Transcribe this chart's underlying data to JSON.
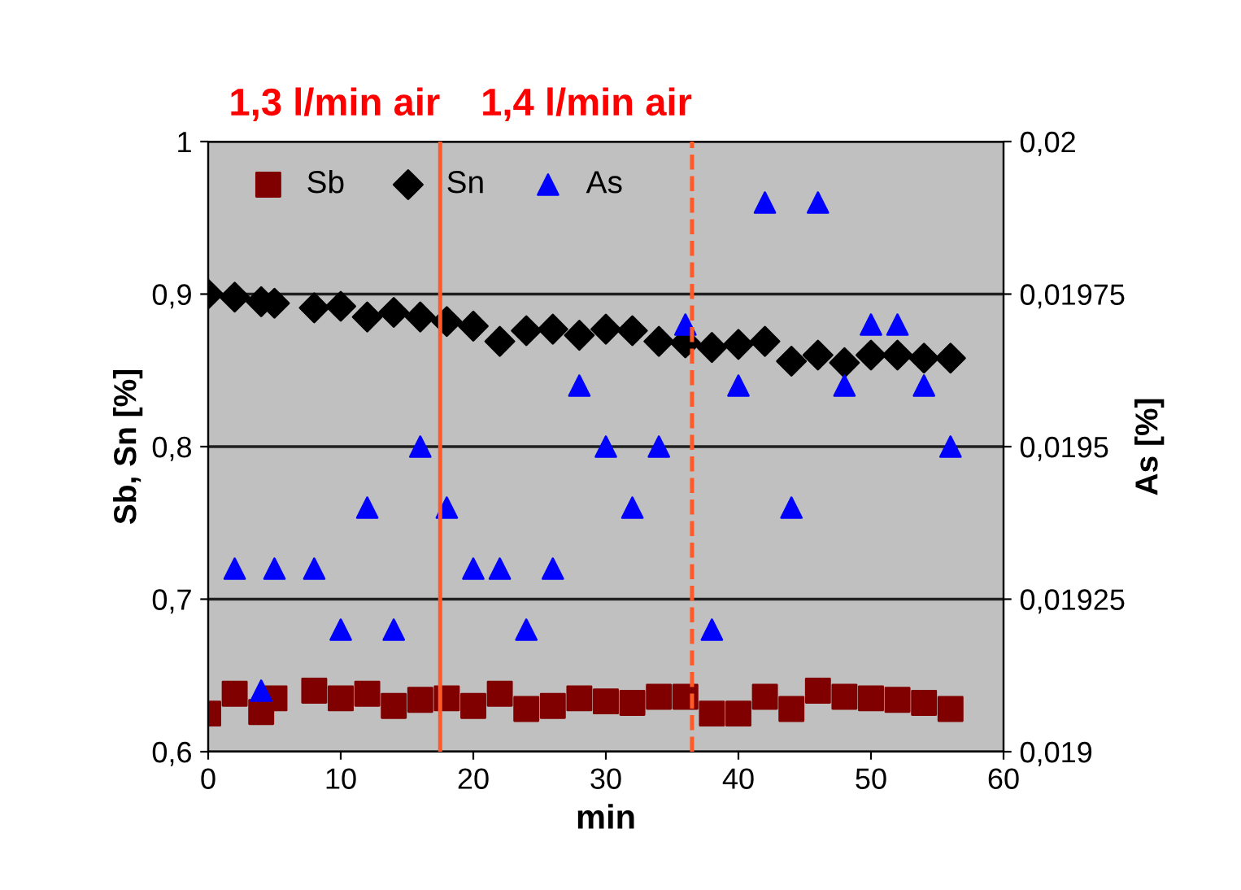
{
  "chart_data": {
    "type": "scatter",
    "xlabel": "min",
    "ylabel": "Sb, Sn [%]",
    "y2label": "As [%]",
    "xlim": [
      0,
      60
    ],
    "xticks": [
      0,
      10,
      20,
      30,
      40,
      50,
      60
    ],
    "ylim": [
      0.6,
      1.0
    ],
    "yticks": [
      {
        "value": 0.6,
        "label": "0,6"
      },
      {
        "value": 0.7,
        "label": "0,7"
      },
      {
        "value": 0.8,
        "label": "0,8"
      },
      {
        "value": 0.9,
        "label": "0,9"
      },
      {
        "value": 1.0,
        "label": "1"
      }
    ],
    "y2lim": [
      0.019,
      0.02
    ],
    "y2ticks": [
      {
        "value": 0.019,
        "label": "0,019"
      },
      {
        "value": 0.01925,
        "label": "0,01925"
      },
      {
        "value": 0.0195,
        "label": "0,0195"
      },
      {
        "value": 0.01975,
        "label": "0,01975"
      },
      {
        "value": 0.02,
        "label": "0,02"
      }
    ],
    "grid": "y",
    "legend": "top left",
    "x": [
      0,
      2,
      4,
      5,
      8,
      10,
      12,
      14,
      16,
      18,
      20,
      22,
      24,
      26,
      28,
      30,
      32,
      34,
      36,
      38,
      40,
      42,
      44,
      46,
      48,
      50,
      52,
      54,
      56
    ],
    "series": [
      {
        "name": "Sb",
        "color": "#800000",
        "marker": "square",
        "values": [
          0.625,
          0.638,
          0.626,
          0.635,
          0.64,
          0.635,
          0.638,
          0.63,
          0.634,
          0.635,
          0.63,
          0.638,
          0.628,
          0.63,
          0.635,
          0.633,
          0.632,
          0.636,
          0.636,
          0.625,
          0.625,
          0.636,
          0.628,
          0.64,
          0.636,
          0.635,
          0.634,
          0.632,
          0.628
        ]
      },
      {
        "name": "Sn",
        "color": "#000000",
        "marker": "diamond",
        "values": [
          0.9,
          0.898,
          0.895,
          0.894,
          0.891,
          0.892,
          0.885,
          0.888,
          0.885,
          0.882,
          0.879,
          0.869,
          0.876,
          0.877,
          0.873,
          0.877,
          0.876,
          0.869,
          0.868,
          0.865,
          0.867,
          0.869,
          0.856,
          0.86,
          0.855,
          0.86,
          0.86,
          0.858,
          0.858
        ]
      },
      {
        "name": "As",
        "color": "#0000ff",
        "marker": "triangle",
        "axis": "y2",
        "x": [
          2,
          4,
          5,
          8,
          10,
          12,
          14,
          16,
          18,
          20,
          22,
          24,
          26,
          28,
          30,
          32,
          34,
          36,
          38,
          40,
          42,
          44,
          46,
          48,
          50,
          52,
          54,
          56
        ],
        "values": [
          0.0193,
          0.0191,
          0.0193,
          0.0193,
          0.0192,
          0.0194,
          0.0192,
          0.0195,
          0.0194,
          0.0193,
          0.0193,
          0.0192,
          0.0193,
          0.0196,
          0.0195,
          0.0194,
          0.0195,
          0.0197,
          0.0192,
          0.0196,
          0.0199,
          0.0194,
          0.0199,
          0.0196,
          0.0197,
          0.0197,
          0.0196,
          0.0195
        ]
      }
    ],
    "ref_lines": [
      {
        "axis": "x",
        "value": 17.5,
        "label": "1,3 l/min air",
        "color": "#ff5a28",
        "line_style": "solid"
      },
      {
        "axis": "x",
        "value": 36.5,
        "label": "1,4 l/min air",
        "color": "#ff5a28",
        "line_style": "dashed"
      }
    ]
  }
}
